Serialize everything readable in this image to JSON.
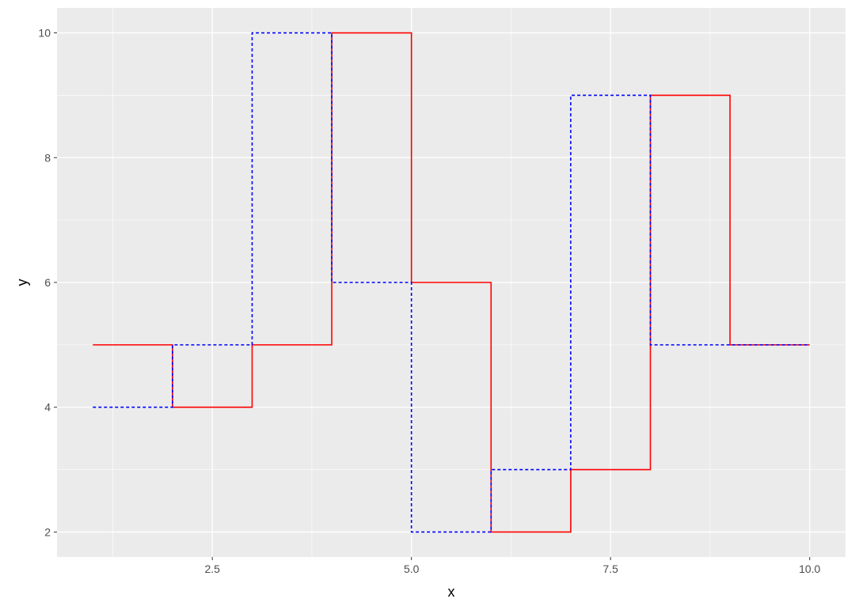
{
  "chart_data": {
    "type": "line",
    "step": "hv",
    "title": "",
    "xlabel": "x",
    "ylabel": "y",
    "xlim": [
      0.55,
      10.45
    ],
    "ylim": [
      1.6,
      10.4
    ],
    "x_ticks": [
      2.5,
      5.0,
      7.5,
      10.0
    ],
    "x_tick_labels": [
      "2.5",
      "5.0",
      "7.5",
      "10.0"
    ],
    "y_ticks": [
      2,
      4,
      6,
      8,
      10
    ],
    "y_tick_labels": [
      "2",
      "4",
      "6",
      "8",
      "10"
    ],
    "grid": true,
    "legend": "none",
    "background": "#ebebeb",
    "grid_color": "#ffffff",
    "series": [
      {
        "color": "#ff0000",
        "dash": "solid",
        "x": [
          1,
          2,
          3,
          4,
          5,
          6,
          7,
          8,
          9,
          10
        ],
        "values": [
          5,
          4,
          5,
          10,
          6,
          2,
          3,
          9,
          5,
          5
        ]
      },
      {
        "color": "#0000ff",
        "dash": "dashed",
        "x": [
          1,
          2,
          3,
          4,
          5,
          6,
          7,
          8,
          9,
          10
        ],
        "values": [
          4,
          5,
          10,
          6,
          2,
          3,
          9,
          5,
          5,
          5
        ]
      }
    ]
  }
}
